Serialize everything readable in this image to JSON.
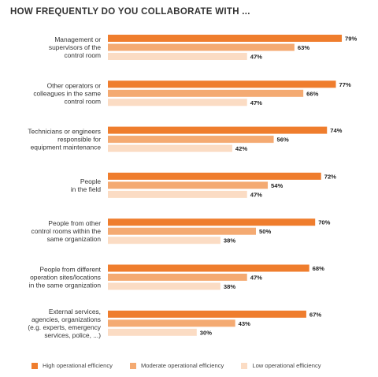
{
  "chart_data": {
    "type": "bar",
    "orientation": "horizontal",
    "title": "HOW FREQUENTLY DO YOU COLLABORATE WITH ...",
    "categories": [
      [
        "Management or",
        "supervisors of the",
        "control room"
      ],
      [
        "Other operators or",
        "colleagues in the same",
        "control room"
      ],
      [
        "Technicians or engineers",
        "responsible for",
        "equipment maintenance"
      ],
      [
        "People",
        "in the field"
      ],
      [
        "People from other",
        "control rooms within the",
        "same organization"
      ],
      [
        "People from different",
        "operation sites/locations",
        "in the same organization"
      ],
      [
        "External services,",
        "agencies, organizations",
        "(e.g. experts, emergency",
        "services, police, ...)"
      ]
    ],
    "series": [
      {
        "name": "High operational efficiency",
        "color": "#ef7d2d",
        "values": [
          79,
          77,
          74,
          72,
          70,
          68,
          67
        ]
      },
      {
        "name": "Moderate operational efficiency",
        "color": "#f4aa72",
        "values": [
          63,
          66,
          56,
          54,
          50,
          47,
          43
        ]
      },
      {
        "name": "Low operational efficiency",
        "color": "#fbdcc4",
        "values": [
          47,
          47,
          42,
          47,
          38,
          38,
          30
        ]
      }
    ],
    "value_suffix": "%",
    "xlim": [
      0,
      100
    ],
    "grid": false,
    "legend_position": "bottom"
  }
}
